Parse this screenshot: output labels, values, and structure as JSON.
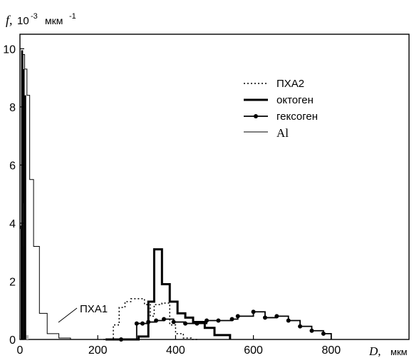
{
  "chart_data": {
    "type": "line",
    "ylabel_symbol": "f,",
    "ylabel_unit": "10",
    "ylabel_exp": "-3",
    "ylabel_unit_text": "мкм",
    "ylabel_unit_exp": "-1",
    "xlabel_symbol": "D,",
    "xlabel_unit": "мкм",
    "xlim": [
      0,
      1000
    ],
    "ylim": [
      0,
      10.5
    ],
    "x_ticks": [
      0,
      200,
      400,
      600,
      800
    ],
    "y_ticks": [
      0,
      2,
      4,
      6,
      8,
      10
    ],
    "x_tick_labels": [
      "0",
      "200",
      "400",
      "600",
      "800"
    ],
    "y_tick_labels": [
      "0",
      "2",
      "4",
      "6",
      "8",
      "10"
    ],
    "annotation": "ПХА1",
    "legend": [
      "ПХА2",
      "октоген",
      "гексоген",
      "Al"
    ],
    "series": [
      {
        "name": "ПХА2",
        "style": "dotted-step",
        "x": [
          215,
          240,
          255,
          270,
          285,
          305,
          320,
          335,
          345,
          365,
          385,
          400,
          420,
          440,
          460
        ],
        "y": [
          0,
          0.5,
          1.1,
          1.3,
          1.4,
          1.4,
          1.2,
          0.8,
          1.2,
          1.25,
          0.5,
          0.2,
          0.05,
          0,
          0
        ]
      },
      {
        "name": "октоген",
        "style": "thick-step",
        "x": [
          220,
          280,
          305,
          330,
          345,
          365,
          385,
          405,
          425,
          445,
          475,
          500,
          540
        ],
        "y": [
          0,
          0,
          0.1,
          1.3,
          3.1,
          1.9,
          1.3,
          0.9,
          0.75,
          0.6,
          0.4,
          0.15,
          0
        ]
      },
      {
        "name": "гексоген",
        "style": "step-with-markers",
        "x": [
          260,
          300,
          315,
          330,
          350,
          370,
          395,
          425,
          455,
          480,
          510,
          545,
          560,
          600,
          630,
          660,
          690,
          720,
          750,
          780,
          800
        ],
        "y": [
          0,
          0.55,
          0.55,
          0.6,
          0.65,
          0.7,
          0.6,
          0.55,
          0.55,
          0.65,
          0.65,
          0.7,
          0.8,
          0.95,
          0.75,
          0.8,
          0.65,
          0.45,
          0.3,
          0.2,
          0.2
        ]
      },
      {
        "name": "Al",
        "style": "thin-step",
        "x": [
          0,
          2,
          5,
          8,
          12,
          18,
          25,
          35,
          50,
          70,
          100,
          130
        ],
        "y": [
          0,
          3.9,
          4.7,
          9.8,
          9.3,
          8.4,
          5.5,
          3.2,
          0.9,
          0.2,
          0.05,
          0
        ]
      }
    ],
    "black_bars": [
      {
        "x0": 3,
        "x1": 8,
        "y": 9.95
      },
      {
        "x0": 8,
        "x1": 12,
        "y": 9.3
      },
      {
        "x0": 12,
        "x1": 16,
        "y": 8.4
      }
    ],
    "shaded_bars": [
      {
        "x0": 0,
        "x1": 4,
        "y": 3.8
      },
      {
        "x0": 4,
        "x1": 8,
        "y": 3.2
      },
      {
        "x0": 8,
        "x1": 12,
        "y": 1.6
      },
      {
        "x0": 12,
        "x1": 16,
        "y": 0.3
      },
      {
        "x0": 16,
        "x1": 22,
        "y": 0.15
      }
    ]
  }
}
